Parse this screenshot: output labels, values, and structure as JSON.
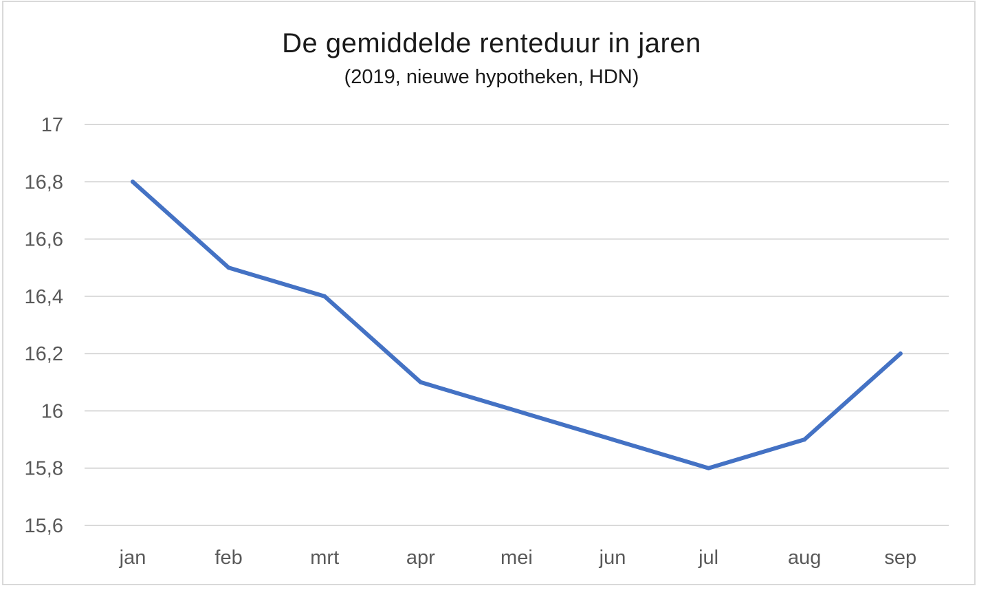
{
  "chart_data": {
    "type": "line",
    "title": "De gemiddelde renteduur in jaren",
    "subtitle": "(2019, nieuwe hypotheken, HDN)",
    "categories": [
      "jan",
      "feb",
      "mrt",
      "apr",
      "mei",
      "jun",
      "jul",
      "aug",
      "sep"
    ],
    "series": [
      {
        "values": [
          16.8,
          16.5,
          16.4,
          16.1,
          16.0,
          15.9,
          15.8,
          15.9,
          16.2
        ]
      }
    ],
    "ylim": [
      15.6,
      17
    ],
    "yticks": [
      "15,6",
      "15,8",
      "16",
      "16,2",
      "16,4",
      "16,6",
      "16,8",
      "17"
    ],
    "ytick_values": [
      15.6,
      15.8,
      16.0,
      16.2,
      16.4,
      16.6,
      16.8,
      17.0
    ],
    "grid": true,
    "legend": "none",
    "colors": {
      "line": "#4472c4",
      "grid": "#d9d9d9",
      "ticks": "#595959"
    }
  }
}
